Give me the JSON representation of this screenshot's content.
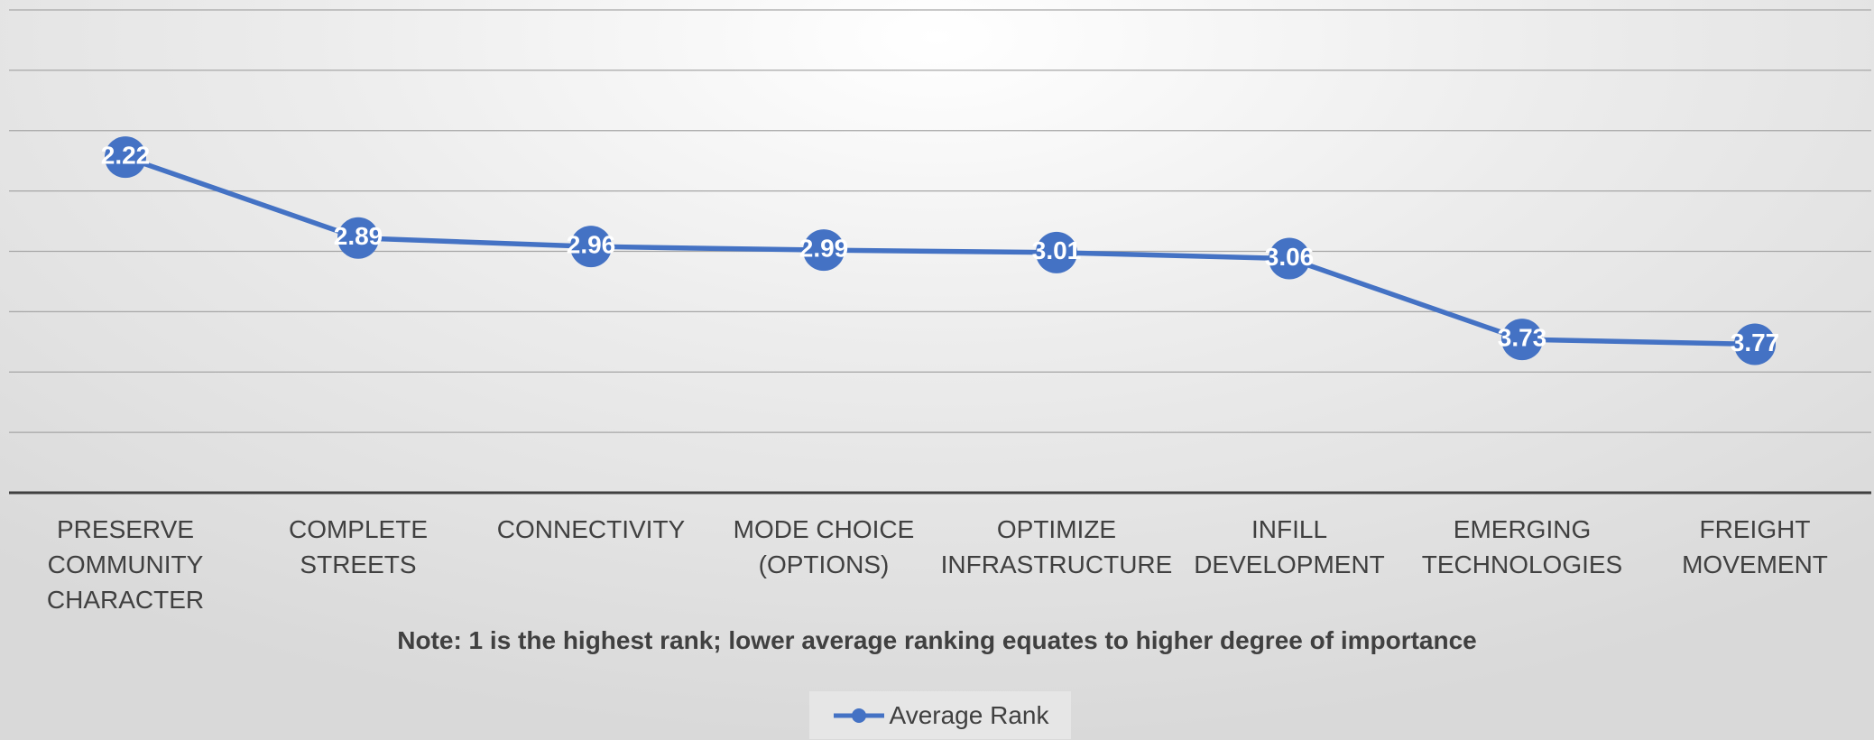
{
  "chart_data": {
    "type": "line",
    "note": "Note: 1 is the highest rank; lower average ranking equates to higher degree of importance",
    "categories": [
      "PRESERVE COMMUNITY CHARACTER",
      "COMPLETE STREETS",
      "CONNECTIVITY",
      "MODE CHOICE (OPTIONS)",
      "OPTIMIZE INFRASTRUCTURE",
      "INFILL DEVELOPMENT",
      "EMERGING TECHNOLOGIES",
      "FREIGHT MOVEMENT"
    ],
    "series": [
      {
        "name": "Average Rank",
        "color": "#4472c4",
        "values": [
          2.22,
          2.89,
          2.96,
          2.99,
          3.01,
          3.06,
          3.73,
          3.77
        ]
      }
    ],
    "ylim": [
      1,
      5
    ],
    "yticks": [
      1,
      1.5,
      2,
      2.5,
      3,
      3.5,
      4,
      4.5,
      5
    ],
    "y_reversed": true,
    "grid": true,
    "legend": "bottom"
  }
}
